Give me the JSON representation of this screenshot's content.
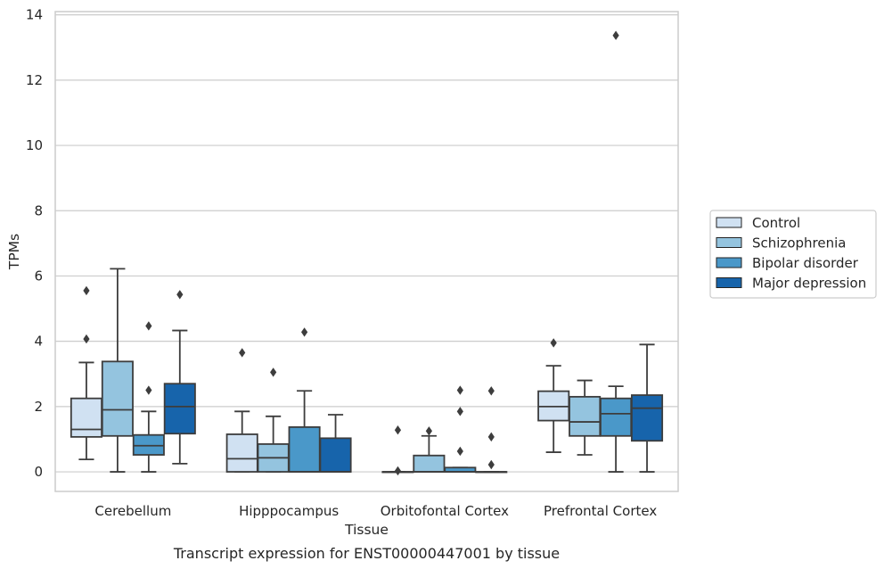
{
  "chart_data": {
    "type": "boxplot",
    "caption": "Transcript expression for ENST00000447001 by tissue",
    "xlabel": "Tissue",
    "ylabel": "TPMs",
    "ylim": [
      -0.6,
      14.1
    ],
    "yticks": [
      0,
      2,
      4,
      6,
      8,
      10,
      12,
      14
    ],
    "grid": "horizontal",
    "legend_position": "right",
    "categories": [
      "Cerebellum",
      "Hipppocampus",
      "Orbitofontal Cortex",
      "Prefrontal Cortex"
    ],
    "series": [
      {
        "name": "Control",
        "color": "#d0e1f2",
        "boxes": [
          {
            "whislo": 0.38,
            "q1": 1.07,
            "med": 1.3,
            "q3": 2.25,
            "whishi": 3.35,
            "fliers": [
              4.07,
              5.55
            ]
          },
          {
            "whislo": 0.0,
            "q1": 0.0,
            "med": 0.4,
            "q3": 1.15,
            "whishi": 1.85,
            "fliers": [
              3.65
            ]
          },
          {
            "whislo": 0.0,
            "q1": 0.0,
            "med": 0.0,
            "q3": 0.0,
            "whishi": 0.0,
            "fliers": [
              0.03,
              1.28
            ]
          },
          {
            "whislo": 0.6,
            "q1": 1.57,
            "med": 2.0,
            "q3": 2.47,
            "whishi": 3.25,
            "fliers": [
              3.95
            ]
          }
        ]
      },
      {
        "name": "Schizophrenia",
        "color": "#94c4df",
        "boxes": [
          {
            "whislo": 0.0,
            "q1": 1.1,
            "med": 1.9,
            "q3": 3.38,
            "whishi": 6.22,
            "fliers": []
          },
          {
            "whislo": 0.0,
            "q1": 0.0,
            "med": 0.43,
            "q3": 0.85,
            "whishi": 1.7,
            "fliers": [
              3.05
            ]
          },
          {
            "whislo": 0.0,
            "q1": 0.0,
            "med": 0.0,
            "q3": 0.5,
            "whishi": 1.1,
            "fliers": [
              1.25
            ]
          },
          {
            "whislo": 0.52,
            "q1": 1.1,
            "med": 1.53,
            "q3": 2.3,
            "whishi": 2.8,
            "fliers": []
          }
        ]
      },
      {
        "name": "Bipolar disorder",
        "color": "#4a98c9",
        "boxes": [
          {
            "whislo": 0.0,
            "q1": 0.52,
            "med": 0.8,
            "q3": 1.13,
            "whishi": 1.85,
            "fliers": [
              2.5,
              4.47
            ]
          },
          {
            "whislo": 0.0,
            "q1": 0.0,
            "med": 0.0,
            "q3": 1.37,
            "whishi": 2.48,
            "fliers": [
              4.28
            ]
          },
          {
            "whislo": 0.0,
            "q1": 0.0,
            "med": 0.0,
            "q3": 0.13,
            "whishi": 0.13,
            "fliers": [
              0.63,
              1.85,
              2.5
            ]
          },
          {
            "whislo": 0.0,
            "q1": 1.1,
            "med": 1.78,
            "q3": 2.25,
            "whishi": 2.62,
            "fliers": [
              13.37
            ]
          }
        ]
      },
      {
        "name": "Major depression",
        "color": "#1764ab",
        "boxes": [
          {
            "whislo": 0.25,
            "q1": 1.17,
            "med": 2.0,
            "q3": 2.7,
            "whishi": 4.33,
            "fliers": [
              5.43
            ]
          },
          {
            "whislo": 0.0,
            "q1": 0.0,
            "med": 0.0,
            "q3": 1.03,
            "whishi": 1.75,
            "fliers": []
          },
          {
            "whislo": 0.0,
            "q1": 0.0,
            "med": 0.0,
            "q3": 0.0,
            "whishi": 0.0,
            "fliers": [
              0.22,
              1.07,
              2.48
            ]
          },
          {
            "whislo": 0.0,
            "q1": 0.95,
            "med": 1.95,
            "q3": 2.35,
            "whishi": 3.9,
            "fliers": []
          }
        ]
      }
    ]
  }
}
